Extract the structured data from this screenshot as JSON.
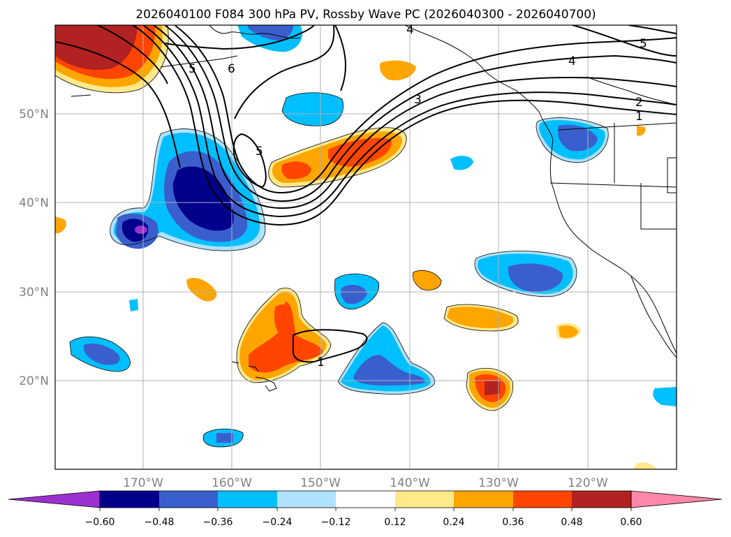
{
  "title": "2026040100 F084 300 hPa PV, Rossby Wave PC (2026040300 - 2026040700)",
  "lat_labels": [
    "50°N",
    "40°N",
    "30°N",
    "20°N"
  ],
  "lon_labels": [
    "170°W",
    "160°W",
    "150°W",
    "140°W",
    "130°W",
    "120°W"
  ],
  "contour_labels": [
    "5",
    "6",
    "5",
    "4",
    "3",
    "2",
    "1",
    "5",
    "4",
    "1"
  ],
  "colorbar": {
    "tick_labels": [
      "−0.60",
      "−0.48",
      "−0.36",
      "−0.24",
      "−0.12",
      "0.12",
      "0.24",
      "0.36",
      "0.48",
      "0.60"
    ],
    "colors": [
      "#9b30d0",
      "#00008b",
      "#3a5fcd",
      "#00bfff",
      "#b0e2ff",
      "#ffffff",
      "#ffe98a",
      "#ffa500",
      "#ff4500",
      "#b22222",
      "#ff88aa"
    ]
  }
}
